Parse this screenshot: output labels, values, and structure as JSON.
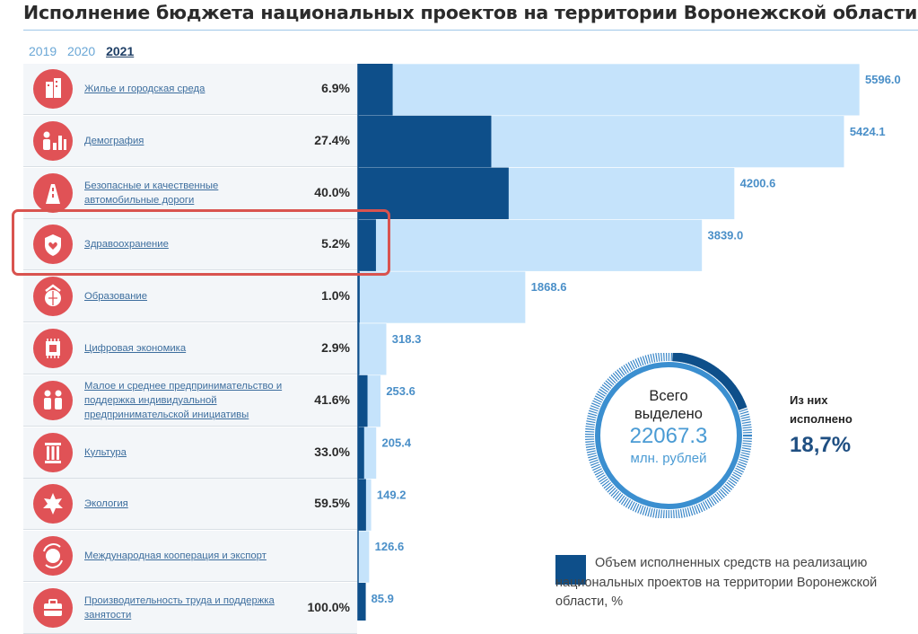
{
  "title": "Исполнение бюджета национальных проектов на территории Воронежской области",
  "years": [
    {
      "label": "2019",
      "active": false
    },
    {
      "label": "2020",
      "active": false
    },
    {
      "label": "2021",
      "active": true
    }
  ],
  "projects": [
    {
      "label": "Жилье и городская среда",
      "pct": "6.9%",
      "icon": "building-icon"
    },
    {
      "label": "Демография",
      "pct": "27.4%",
      "icon": "family-icon"
    },
    {
      "label": "Безопасные и качественные автомобильные дороги",
      "pct": "40.0%",
      "icon": "road-icon"
    },
    {
      "label": "Здравоохранение",
      "pct": "5.2%",
      "icon": "heart-shield-icon"
    },
    {
      "label": "Образование",
      "pct": "1.0%",
      "icon": "globe-book-icon"
    },
    {
      "label": "Цифровая экономика",
      "pct": "2.9%",
      "icon": "chip-icon"
    },
    {
      "label": "Малое и среднее предпринимательство и поддержка индивидуальной предпринимательской инициативы",
      "pct": "41.6%",
      "icon": "handshake-people-icon"
    },
    {
      "label": "Культура",
      "pct": "33.0%",
      "icon": "column-icon"
    },
    {
      "label": "Экология",
      "pct": "59.5%",
      "icon": "leaf-icon"
    },
    {
      "label": "Международная кооперация и экспорт",
      "pct": "",
      "icon": "globe-arrows-icon"
    },
    {
      "label": "Производительность труда и поддержка занятости",
      "pct": "100.0%",
      "icon": "briefcase-icon"
    }
  ],
  "chart_data": {
    "type": "bar",
    "orientation": "horizontal",
    "categories": [
      "Жилье и городская среда",
      "Демография",
      "Безопасные и качественные автомобильные дороги",
      "Здравоохранение",
      "Образование",
      "Цифровая экономика",
      "Малое и среднее предпринимательство и поддержка индивидуальной предпринимательской инициативы",
      "Культура",
      "Экология",
      "Международная кооперация и экспорт",
      "Производительность труда и поддержка занятости"
    ],
    "allocated": [
      5596.0,
      5424.1,
      4200.6,
      3839.0,
      1868.6,
      318.3,
      253.6,
      205.4,
      149.2,
      126.6,
      85.9
    ],
    "allocated_labels": [
      "5596.0",
      "5424.1",
      "4200.6",
      "3839.0",
      "1868.6",
      "318.3",
      "253.6",
      "205.4",
      "149.2",
      "126.6",
      "85.9"
    ],
    "executed_pct": [
      6.9,
      27.4,
      40.0,
      5.2,
      1.0,
      2.9,
      41.6,
      33.0,
      59.5,
      0,
      100.0
    ],
    "colors": {
      "allocated": "#c5e3fb",
      "executed": "#0e4f8a"
    }
  },
  "total": {
    "line1": "Всего",
    "line2": "выделено",
    "value": "22067.3",
    "unit": "млн. рублей",
    "done_line1": "Из них",
    "done_line2": "исполнено",
    "done_value": "18,7%",
    "done_fraction": 0.187
  },
  "legend": {
    "executed": "Объем исполненных средств на реализацию национальных проектов на территории Воронежской области, %"
  }
}
